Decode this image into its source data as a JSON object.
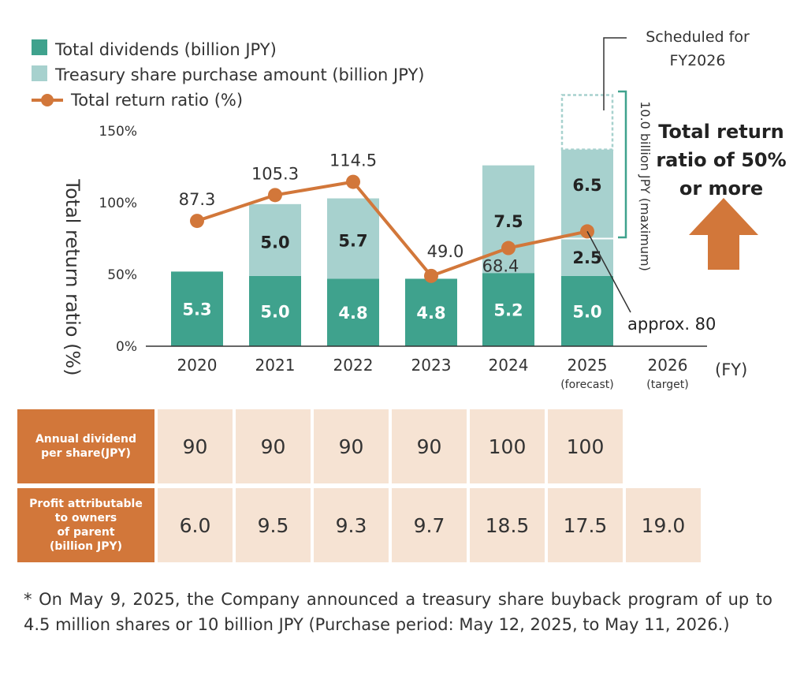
{
  "chart_data": {
    "type": "bar",
    "stacked": true,
    "categories": [
      "2020",
      "2021",
      "2022",
      "2023",
      "2024",
      "2025",
      "2026"
    ],
    "category_sublabels": [
      "",
      "",
      "",
      "",
      "",
      "(forecast)",
      "(target)"
    ],
    "x_unit": "(FY)",
    "ylabel": "Total return ratio (%)",
    "y_ticks": [
      "0%",
      "50%",
      "100%",
      "150%"
    ],
    "ylim": [
      0,
      150
    ],
    "grid": false,
    "legend_position": "top-left",
    "legend": [
      "Total dividends  (billion JPY)",
      "Treasury share purchase amount (billion JPY)",
      "Total return ratio (%)"
    ],
    "series": [
      {
        "name": "Total dividends  (billion JPY)",
        "kind": "bar",
        "color": "#3fa28d",
        "values": [
          5.3,
          5.0,
          4.8,
          4.8,
          5.2,
          5.0,
          null
        ],
        "labels": [
          "5.3",
          "5.0",
          "4.8",
          "4.8",
          "5.2",
          "5.0",
          ""
        ],
        "heights_pct": [
          52,
          49,
          47,
          47,
          51,
          49,
          null
        ]
      },
      {
        "name": "Treasury share purchase amount (billion JPY)",
        "kind": "bar",
        "color": "#a7d1ce",
        "values": [
          null,
          5.0,
          5.7,
          null,
          7.5,
          9.0,
          null
        ],
        "labels": [
          "",
          "5.0",
          "5.7",
          "",
          "7.5",
          "",
          ""
        ],
        "heights_pct": [
          null,
          50,
          56,
          null,
          75,
          88,
          null
        ],
        "segments_2025": [
          {
            "label": "2.5",
            "height_pct": 26
          },
          {
            "label": "6.5",
            "height_pct": 62
          }
        ]
      },
      {
        "name": "Total return ratio (%)",
        "kind": "line",
        "color": "#d2773a",
        "values": [
          87.3,
          105.3,
          114.5,
          49.0,
          68.4,
          80,
          null
        ],
        "labels": [
          "87.3",
          "105.3",
          "114.5",
          "49.0",
          "68.4",
          "approx. 80",
          ""
        ]
      }
    ],
    "scheduled_2026_pct": 38,
    "annotations": {
      "scheduled": "Scheduled for\nFY2026",
      "bracket": "10.0 billion JPY (maximum)",
      "target": "Total return\nratio of 50%\nor more"
    }
  },
  "table": {
    "rows": [
      {
        "header": "Annual dividend\nper share(JPY)",
        "cells": [
          "90",
          "90",
          "90",
          "90",
          "100",
          "100",
          ""
        ]
      },
      {
        "header": "Profit attributable\nto owners\nof parent\n(billion JPY)",
        "cells": [
          "6.0",
          "9.5",
          "9.3",
          "9.7",
          "18.5",
          "17.5",
          "19.0"
        ]
      }
    ]
  },
  "footnote": "* On May 9, 2025, the Company announced a treasury share buyback program of up to 4.5 million shares or 10 billion JPY (Purchase period: May 12, 2025, to May 11, 2026.)",
  "colors": {
    "dividends": "#3fa28d",
    "buyback": "#a7d1ce",
    "ratio_line": "#d2773a",
    "bracket": "#3fa28d",
    "scheduled_box": "#a7d1ce",
    "table_header": "#d2773a",
    "table_cell": "#f6e3d3"
  }
}
